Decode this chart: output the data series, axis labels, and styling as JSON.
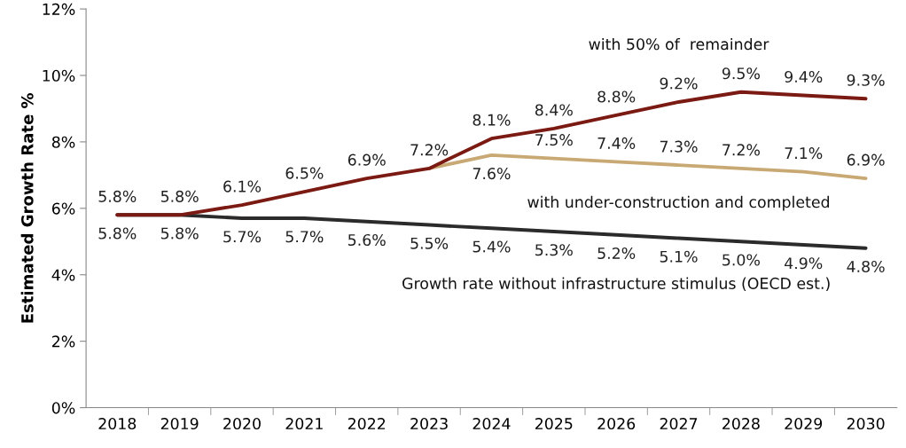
{
  "chart_data": {
    "type": "line",
    "ylabel": "Estimated Growth Rate %",
    "categories": [
      "2018",
      "2019",
      "2020",
      "2021",
      "2022",
      "2023",
      "2024",
      "2025",
      "2026",
      "2027",
      "2028",
      "2029",
      "2030"
    ],
    "ylim": [
      0,
      12
    ],
    "yticks": [
      {
        "value": 0,
        "label": "0%"
      },
      {
        "value": 2,
        "label": "2%"
      },
      {
        "value": 4,
        "label": "4%"
      },
      {
        "value": 6,
        "label": "6%"
      },
      {
        "value": 8,
        "label": "8%"
      },
      {
        "value": 10,
        "label": "10%"
      },
      {
        "value": 12,
        "label": "12%"
      }
    ],
    "grid": false,
    "legend": false,
    "marker": "none",
    "line_style": "solid",
    "series": [
      {
        "name": "with 50% of  remainder",
        "color": "#7b1a12",
        "values": [
          5.8,
          5.8,
          6.1,
          6.5,
          6.9,
          7.2,
          8.1,
          8.4,
          8.8,
          9.2,
          9.5,
          9.4,
          9.3
        ],
        "value_labels": [
          "5.8%",
          "5.8%",
          "6.1%",
          "6.5%",
          "6.9%",
          "7.2%",
          "8.1%",
          "8.4%",
          "8.8%",
          "9.2%",
          "9.5%",
          "9.4%",
          "9.3%"
        ]
      },
      {
        "name": "with under-construction and completed",
        "color": "#c8a873",
        "values": [
          null,
          null,
          null,
          null,
          null,
          7.2,
          7.6,
          7.5,
          7.4,
          7.3,
          7.2,
          7.1,
          6.9
        ],
        "value_labels": [
          null,
          null,
          null,
          null,
          null,
          null,
          "7.6%",
          "7.5%",
          "7.4%",
          "7.3%",
          "7.2%",
          "7.1%",
          "6.9%"
        ]
      },
      {
        "name": "Growth rate without infrastructure stimulus (OECD est.)",
        "color": "#2b2b2b",
        "values": [
          5.8,
          5.8,
          5.7,
          5.7,
          5.6,
          5.5,
          5.4,
          5.3,
          5.2,
          5.1,
          5.0,
          4.9,
          4.8
        ],
        "value_labels": [
          "5.8%",
          "5.8%",
          "5.7%",
          "5.7%",
          "5.6%",
          "5.5%",
          "5.4%",
          "5.3%",
          "5.2%",
          "5.1%",
          "5.0%",
          "4.9%",
          "4.8%"
        ]
      }
    ]
  }
}
